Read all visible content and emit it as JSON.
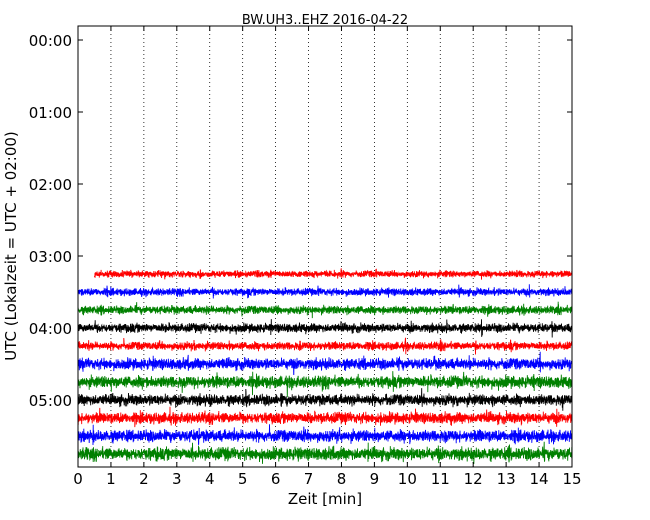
{
  "chart_data": {
    "type": "line",
    "title": "BW.UH3..EHZ 2016-04-22",
    "xlabel": "Zeit  [min]",
    "ylabel": "UTC (Lokalzeit = UTC + 02:00)",
    "xlim": [
      0,
      15
    ],
    "x_ticks": [
      "0",
      "1",
      "2",
      "3",
      "4",
      "5",
      "6",
      "7",
      "8",
      "9",
      "10",
      "11",
      "12",
      "13",
      "14",
      "15"
    ],
    "y_ticks": [
      "00:00",
      "01:00",
      "02:00",
      "03:00",
      "04:00",
      "05:00"
    ],
    "grid": "vertical-dotted",
    "trace_colors": [
      "#ff0000",
      "#0000ff",
      "#008000",
      "#000000"
    ],
    "series": [
      {
        "row_start": "03:15",
        "color": "#ff0000",
        "x_range": [
          0.5,
          15
        ],
        "amplitude": 0.18
      },
      {
        "row_start": "03:30",
        "color": "#0000ff",
        "x_range": [
          0,
          15
        ],
        "amplitude": 0.2
      },
      {
        "row_start": "03:45",
        "color": "#008000",
        "x_range": [
          0,
          15
        ],
        "amplitude": 0.22
      },
      {
        "row_start": "04:00",
        "color": "#000000",
        "x_range": [
          0,
          15
        ],
        "amplitude": 0.24
      },
      {
        "row_start": "04:15",
        "color": "#ff0000",
        "x_range": [
          0,
          15
        ],
        "amplitude": 0.22
      },
      {
        "row_start": "04:30",
        "color": "#0000ff",
        "x_range": [
          0,
          15
        ],
        "amplitude": 0.3
      },
      {
        "row_start": "04:45",
        "color": "#008000",
        "x_range": [
          0,
          15
        ],
        "amplitude": 0.32
      },
      {
        "row_start": "05:00",
        "color": "#000000",
        "x_range": [
          0,
          15
        ],
        "amplitude": 0.3
      },
      {
        "row_start": "05:15",
        "color": "#ff0000",
        "x_range": [
          0,
          15
        ],
        "amplitude": 0.3
      },
      {
        "row_start": "05:30",
        "color": "#0000ff",
        "x_range": [
          0,
          15
        ],
        "amplitude": 0.32
      },
      {
        "row_start": "05:45",
        "color": "#008000",
        "x_range": [
          0,
          15
        ],
        "amplitude": 0.34
      }
    ]
  }
}
